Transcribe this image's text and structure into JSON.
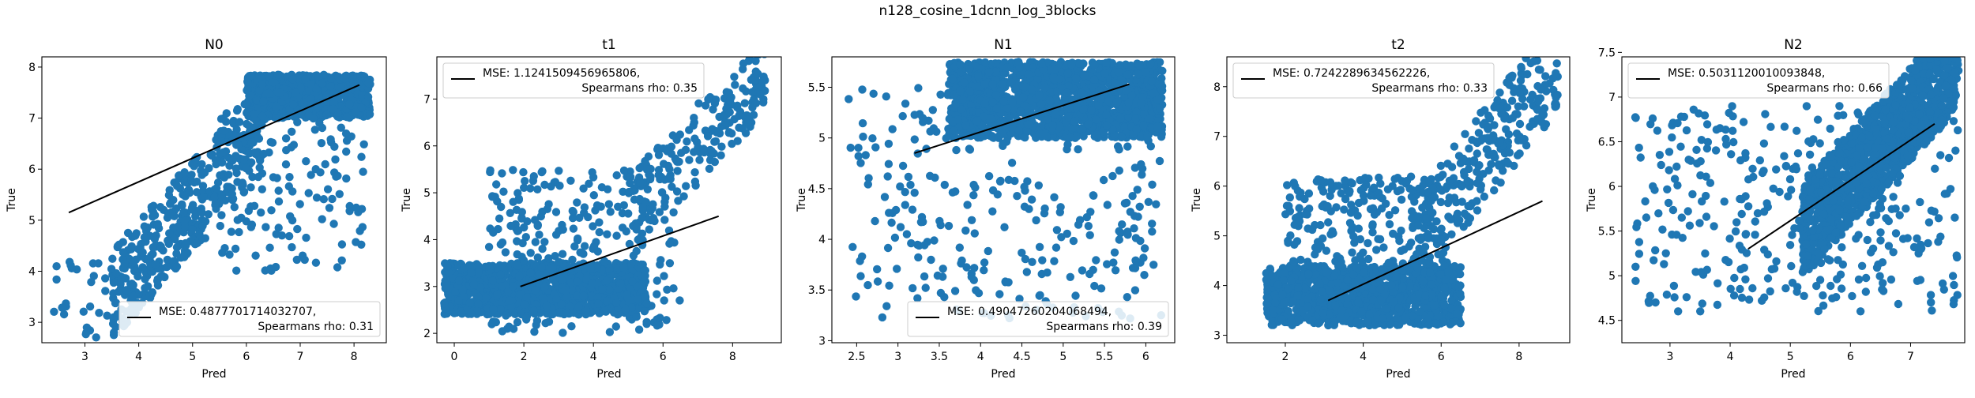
{
  "figure_title": "n128_cosine_1dcnn_log_3blocks",
  "colors": {
    "points": "#1f77b4",
    "fit_line": "#000000"
  },
  "chart_data": [
    {
      "type": "scatter",
      "title": "N0",
      "xlabel": "Pred",
      "ylabel": "True",
      "xlim": [
        2.2,
        8.6
      ],
      "ylim": [
        2.6,
        8.2
      ],
      "xticks": [
        3,
        4,
        5,
        6,
        7,
        8
      ],
      "yticks": [
        3,
        4,
        5,
        6,
        7,
        8
      ],
      "fit_line": {
        "x": [
          2.7,
          8.1
        ],
        "y": [
          5.15,
          7.65
        ]
      },
      "legend": {
        "position": "lower right",
        "line1": "MSE: 0.4877701714032707,",
        "line2": "Spearmans rho: 0.31"
      },
      "point_clusters": [
        {
          "x_range": [
            6.0,
            8.3
          ],
          "y_range": [
            7.0,
            7.85
          ],
          "n": 900
        },
        {
          "x_range": [
            3.5,
            6.3
          ],
          "y_range": [
            3.5,
            6.8
          ],
          "n": 400,
          "trend": true
        },
        {
          "x_range": [
            2.4,
            3.8
          ],
          "y_range": [
            2.7,
            4.2
          ],
          "n": 40
        },
        {
          "x_range": [
            5.5,
            8.2
          ],
          "y_range": [
            4.0,
            7.2
          ],
          "n": 150
        }
      ]
    },
    {
      "type": "scatter",
      "title": "t1",
      "xlabel": "Pred",
      "ylabel": "True",
      "xlim": [
        -0.5,
        9.4
      ],
      "ylim": [
        1.8,
        7.9
      ],
      "xticks": [
        0,
        2,
        4,
        6,
        8
      ],
      "yticks": [
        2,
        3,
        4,
        5,
        6,
        7
      ],
      "fit_line": {
        "x": [
          1.9,
          7.6
        ],
        "y": [
          3.0,
          4.5
        ]
      },
      "legend": {
        "position": "upper left",
        "line1": "MSE: 1.1241509456965806,",
        "line2": "Spearmans rho: 0.35"
      },
      "point_clusters": [
        {
          "x_range": [
            -0.3,
            5.5
          ],
          "y_range": [
            2.4,
            3.5
          ],
          "n": 1100
        },
        {
          "x_range": [
            1.0,
            6.5
          ],
          "y_range": [
            2.0,
            5.5
          ],
          "n": 300
        },
        {
          "x_range": [
            5.0,
            9.0
          ],
          "y_range": [
            4.5,
            7.6
          ],
          "n": 200,
          "trend": true
        }
      ]
    },
    {
      "type": "scatter",
      "title": "N1",
      "xlabel": "Pred",
      "ylabel": "True",
      "xlim": [
        2.2,
        6.35
      ],
      "ylim": [
        2.98,
        5.8
      ],
      "xticks": [
        2.5,
        3.0,
        3.5,
        4.0,
        4.5,
        5.0,
        5.5,
        6.0
      ],
      "yticks": [
        3.0,
        3.5,
        4.0,
        4.5,
        5.0,
        5.5
      ],
      "fit_line": {
        "x": [
          3.2,
          5.8
        ],
        "y": [
          4.85,
          5.53
        ]
      },
      "legend": {
        "position": "lower right",
        "line1": "MSE: 0.49047260204068494,",
        "line2": "Spearmans rho: 0.39"
      },
      "point_clusters": [
        {
          "x_range": [
            3.6,
            6.2
          ],
          "y_range": [
            5.0,
            5.75
          ],
          "n": 1500
        },
        {
          "x_range": [
            2.4,
            6.2
          ],
          "y_range": [
            3.2,
            5.5
          ],
          "n": 300
        }
      ]
    },
    {
      "type": "scatter",
      "title": "t2",
      "xlabel": "Pred",
      "ylabel": "True",
      "xlim": [
        0.5,
        9.3
      ],
      "ylim": [
        2.85,
        8.6
      ],
      "xticks": [
        2,
        4,
        6,
        8
      ],
      "yticks": [
        3,
        4,
        5,
        6,
        7,
        8
      ],
      "fit_line": {
        "x": [
          3.1,
          8.6
        ],
        "y": [
          3.7,
          5.7
        ]
      },
      "legend": {
        "position": "upper left",
        "line1": "MSE: 0.7242289634562226,",
        "line2": "Spearmans rho: 0.33"
      },
      "point_clusters": [
        {
          "x_range": [
            1.5,
            6.5
          ],
          "y_range": [
            3.2,
            4.4
          ],
          "n": 1100
        },
        {
          "x_range": [
            2.0,
            6.5
          ],
          "y_range": [
            4.2,
            6.2
          ],
          "n": 250
        },
        {
          "x_range": [
            5.5,
            9.0
          ],
          "y_range": [
            5.0,
            8.5
          ],
          "n": 250,
          "trend": true
        }
      ]
    },
    {
      "type": "scatter",
      "title": "N2",
      "xlabel": "Pred",
      "ylabel": "True",
      "xlim": [
        2.2,
        7.9
      ],
      "ylim": [
        4.25,
        7.45
      ],
      "xticks": [
        3,
        4,
        5,
        6,
        7
      ],
      "yticks": [
        4.5,
        5.0,
        5.5,
        6.0,
        6.5,
        7.0,
        7.5
      ],
      "fit_line": {
        "x": [
          4.3,
          7.4
        ],
        "y": [
          5.3,
          6.7
        ]
      },
      "legend": {
        "position": "upper left",
        "line1": "MSE: 0.5031120010093848,",
        "line2": "Spearmans rho: 0.66"
      },
      "point_clusters": [
        {
          "x_range": [
            5.2,
            7.8
          ],
          "y_range": [
            5.5,
            7.4
          ],
          "n": 1300,
          "trend": true
        },
        {
          "x_range": [
            2.4,
            7.8
          ],
          "y_range": [
            4.6,
            6.9
          ],
          "n": 350
        }
      ]
    }
  ]
}
